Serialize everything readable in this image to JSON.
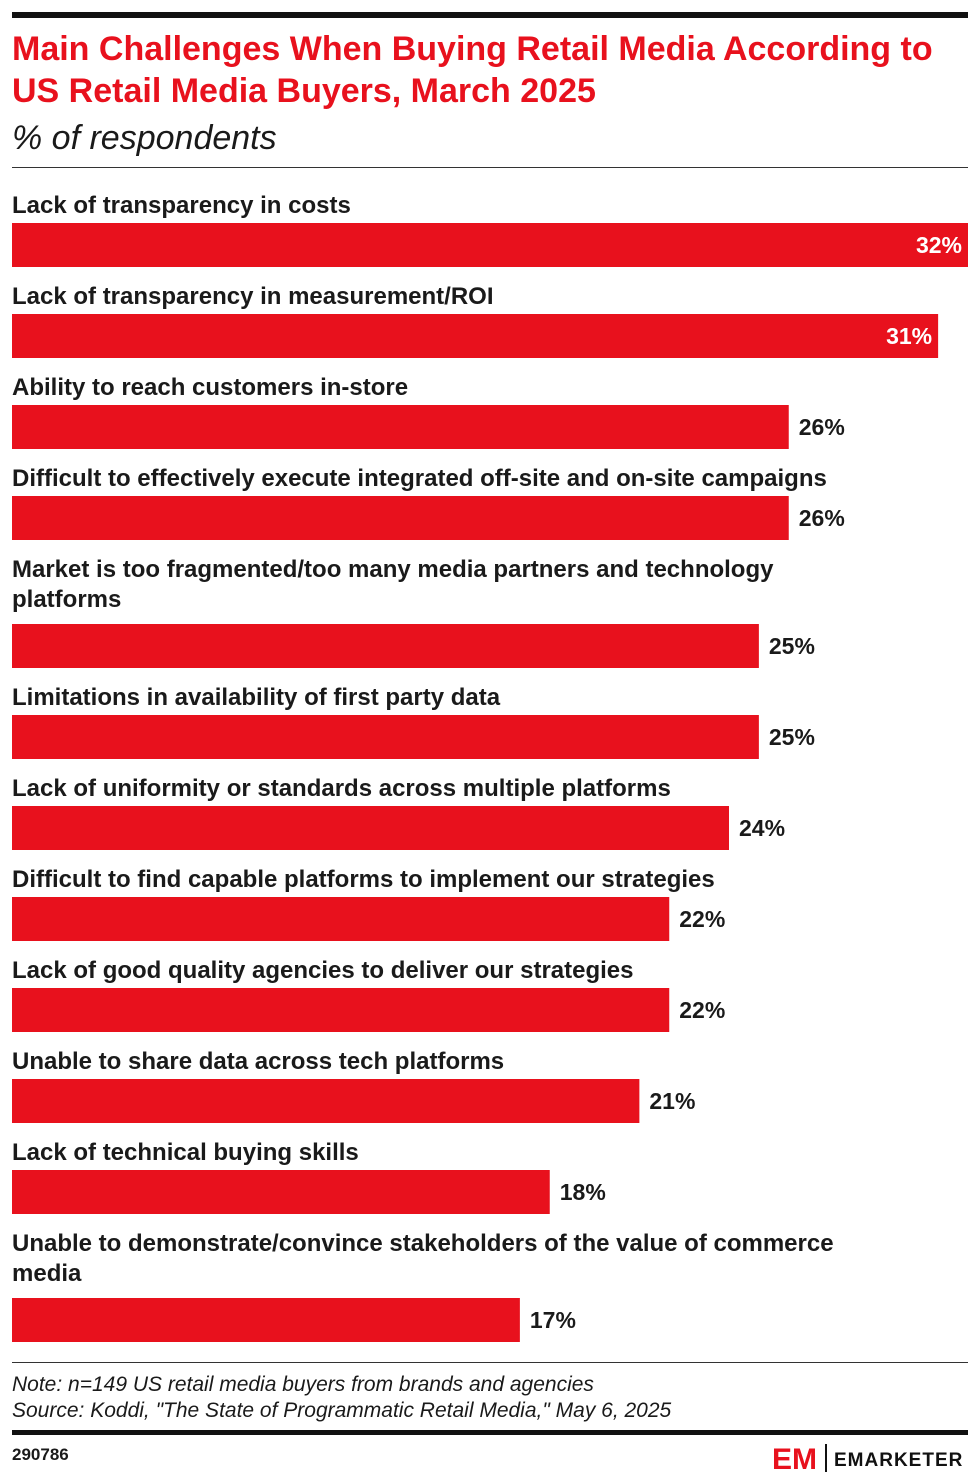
{
  "header": {
    "title": "Main Challenges When Buying Retail Media According to US Retail Media Buyers, March 2025",
    "subtitle": "% of respondents"
  },
  "chart_data": {
    "type": "bar",
    "orientation": "horizontal",
    "categories": [
      "Lack of transparency in costs",
      "Lack of transparency in measurement/ROI",
      "Ability to reach customers in-store",
      "Difficult to effectively execute integrated off-site and on-site campaigns",
      "Market is too fragmented/too many media partners and technology platforms",
      "Limitations in availability of first party data",
      "Lack of uniformity or standards across multiple platforms",
      "Difficult to find capable platforms to implement our strategies",
      "Lack of good quality agencies to deliver our strategies",
      "Unable to share data across tech platforms",
      "Lack of technical buying skills",
      "Unable to demonstrate/convince stakeholders of the value of commerce media"
    ],
    "values": [
      32,
      31,
      26,
      26,
      25,
      25,
      24,
      22,
      22,
      21,
      18,
      17
    ],
    "value_labels": [
      "32%",
      "31%",
      "26%",
      "26%",
      "25%",
      "25%",
      "24%",
      "22%",
      "22%",
      "21%",
      "18%",
      "17%"
    ],
    "xlim": [
      0,
      32
    ],
    "bar_color": "#e8111d",
    "grid": false,
    "legend": "none"
  },
  "footer": {
    "note": "Note: n=149 US retail media buyers from brands and agencies",
    "source": "Source: Koddi, \"The State of Programmatic Retail Media,\" May 6, 2025",
    "chart_id": "290786",
    "brand": "EMARKETER",
    "brand_mark": "EM",
    "brand_color": "#e8111d"
  }
}
